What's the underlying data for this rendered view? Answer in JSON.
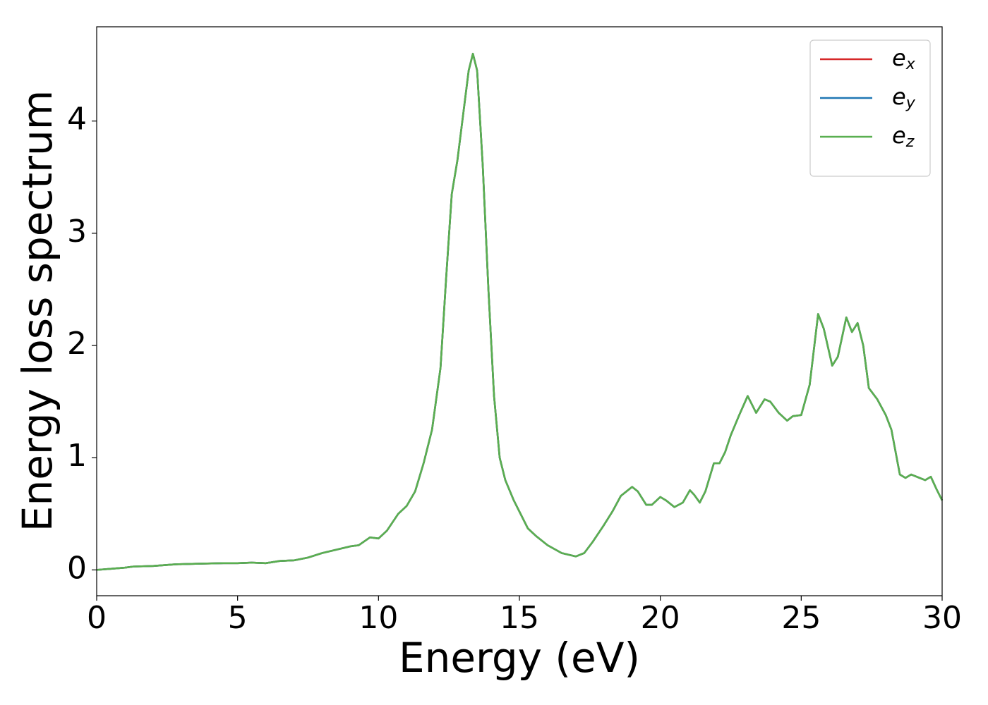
{
  "chart_data": {
    "type": "line",
    "xlabel": "Energy (eV)",
    "ylabel": "Energy loss spectrum",
    "xlim": [
      0,
      30
    ],
    "ylim": [
      -0.23,
      4.84
    ],
    "xticks": [
      0,
      5,
      10,
      15,
      20,
      25,
      30
    ],
    "yticks": [
      0,
      1,
      2,
      3,
      4
    ],
    "grid": false,
    "legend": "upper right",
    "x": [
      0,
      0.5,
      1,
      1.3,
      2,
      2.8,
      3.5,
      4.5,
      5,
      5.5,
      6,
      6.5,
      7,
      7.5,
      8,
      8.5,
      9,
      9.3,
      9.7,
      10,
      10.3,
      10.7,
      11,
      11.3,
      11.6,
      11.9,
      12.2,
      12.4,
      12.6,
      12.8,
      13.0,
      13.2,
      13.35,
      13.5,
      13.7,
      13.9,
      14.1,
      14.3,
      14.5,
      14.8,
      15,
      15.3,
      15.6,
      16,
      16.5,
      17,
      17.3,
      17.6,
      18,
      18.3,
      18.6,
      19,
      19.2,
      19.5,
      19.7,
      20,
      20.2,
      20.5,
      20.8,
      21.05,
      21.2,
      21.4,
      21.6,
      21.9,
      22.1,
      22.3,
      22.5,
      22.8,
      23.1,
      23.4,
      23.7,
      23.9,
      24.2,
      24.5,
      24.7,
      25,
      25.3,
      25.6,
      25.8,
      26.1,
      26.3,
      26.6,
      26.8,
      27.0,
      27.2,
      27.4,
      27.7,
      28.0,
      28.2,
      28.5,
      28.7,
      28.9,
      29.2,
      29.4,
      29.6,
      29.8,
      30
    ],
    "series": [
      {
        "name": "ex",
        "color": "#d62728",
        "values": [
          0,
          0.01,
          0.02,
          0.03,
          0.035,
          0.05,
          0.055,
          0.06,
          0.06,
          0.065,
          0.06,
          0.08,
          0.085,
          0.11,
          0.15,
          0.18,
          0.21,
          0.22,
          0.29,
          0.28,
          0.35,
          0.5,
          0.57,
          0.7,
          0.95,
          1.25,
          1.8,
          2.6,
          3.35,
          3.65,
          4.05,
          4.45,
          4.6,
          4.45,
          3.6,
          2.5,
          1.55,
          1.0,
          0.8,
          0.62,
          0.52,
          0.37,
          0.3,
          0.22,
          0.15,
          0.12,
          0.15,
          0.25,
          0.4,
          0.52,
          0.66,
          0.74,
          0.7,
          0.58,
          0.58,
          0.65,
          0.62,
          0.56,
          0.6,
          0.71,
          0.67,
          0.6,
          0.7,
          0.95,
          0.95,
          1.05,
          1.2,
          1.38,
          1.55,
          1.4,
          1.52,
          1.5,
          1.4,
          1.33,
          1.37,
          1.38,
          1.65,
          2.28,
          2.15,
          1.82,
          1.9,
          2.25,
          2.12,
          2.2,
          2.0,
          1.62,
          1.52,
          1.38,
          1.25,
          0.85,
          0.82,
          0.85,
          0.82,
          0.8,
          0.83,
          0.72,
          0.62
        ]
      },
      {
        "name": "ey",
        "color": "#1f77b4",
        "values": [
          0,
          0.01,
          0.02,
          0.03,
          0.035,
          0.05,
          0.055,
          0.06,
          0.06,
          0.065,
          0.06,
          0.08,
          0.085,
          0.11,
          0.15,
          0.18,
          0.21,
          0.22,
          0.29,
          0.28,
          0.35,
          0.5,
          0.57,
          0.7,
          0.95,
          1.25,
          1.8,
          2.6,
          3.35,
          3.65,
          4.05,
          4.45,
          4.6,
          4.45,
          3.6,
          2.5,
          1.55,
          1.0,
          0.8,
          0.62,
          0.52,
          0.37,
          0.3,
          0.22,
          0.15,
          0.12,
          0.15,
          0.25,
          0.4,
          0.52,
          0.66,
          0.74,
          0.7,
          0.58,
          0.58,
          0.65,
          0.62,
          0.56,
          0.6,
          0.71,
          0.67,
          0.6,
          0.7,
          0.95,
          0.95,
          1.05,
          1.2,
          1.38,
          1.55,
          1.4,
          1.52,
          1.5,
          1.4,
          1.33,
          1.37,
          1.38,
          1.65,
          2.28,
          2.15,
          1.82,
          1.9,
          2.25,
          2.12,
          2.2,
          2.0,
          1.62,
          1.52,
          1.38,
          1.25,
          0.85,
          0.82,
          0.85,
          0.82,
          0.8,
          0.83,
          0.72,
          0.62
        ]
      },
      {
        "name": "ez",
        "color": "#5aaf50",
        "values": [
          0,
          0.01,
          0.02,
          0.03,
          0.035,
          0.05,
          0.055,
          0.06,
          0.06,
          0.065,
          0.06,
          0.08,
          0.085,
          0.11,
          0.15,
          0.18,
          0.21,
          0.22,
          0.29,
          0.28,
          0.35,
          0.5,
          0.57,
          0.7,
          0.95,
          1.25,
          1.8,
          2.6,
          3.35,
          3.65,
          4.05,
          4.45,
          4.6,
          4.45,
          3.6,
          2.5,
          1.55,
          1.0,
          0.8,
          0.62,
          0.52,
          0.37,
          0.3,
          0.22,
          0.15,
          0.12,
          0.15,
          0.25,
          0.4,
          0.52,
          0.66,
          0.74,
          0.7,
          0.58,
          0.58,
          0.65,
          0.62,
          0.56,
          0.6,
          0.71,
          0.67,
          0.6,
          0.7,
          0.95,
          0.95,
          1.05,
          1.2,
          1.38,
          1.55,
          1.4,
          1.52,
          1.5,
          1.4,
          1.33,
          1.37,
          1.38,
          1.65,
          2.28,
          2.15,
          1.82,
          1.9,
          2.25,
          2.12,
          2.2,
          2.0,
          1.62,
          1.52,
          1.38,
          1.25,
          0.85,
          0.82,
          0.85,
          0.82,
          0.8,
          0.83,
          0.72,
          0.62
        ]
      }
    ]
  }
}
